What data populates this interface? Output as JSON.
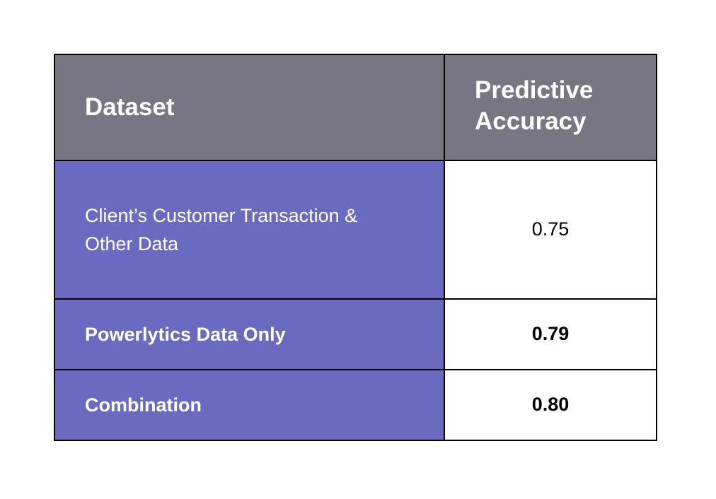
{
  "table": {
    "header": [
      "Dataset",
      "Predictive Accuracy"
    ],
    "rows": [
      [
        "Client’s Customer Transaction & Other Data",
        "0.75"
      ],
      [
        "Powerlytics Data Only",
        "0.79"
      ],
      [
        "Combination",
        "0.80"
      ]
    ]
  }
}
